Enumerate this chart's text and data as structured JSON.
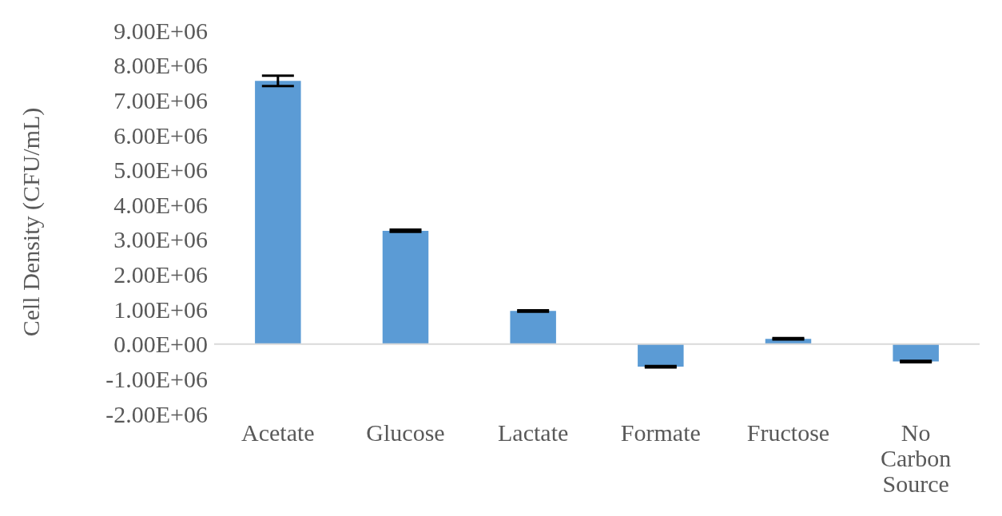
{
  "chart_data": {
    "type": "bar",
    "ylabel": "Cell Density (CFU/mL)",
    "categories": [
      "Acetate",
      "Glucose",
      "Lactate",
      "Formate",
      "Fructose",
      "No Carbon Source"
    ],
    "values": [
      7550000,
      3250000,
      950000,
      -650000,
      150000,
      -500000
    ],
    "errors": [
      150000,
      30000,
      20000,
      20000,
      20000,
      20000
    ],
    "color": "#5b9bd5",
    "ylim": [
      -2000000,
      9000000
    ],
    "yticks": [
      {
        "value": -2000000,
        "label": "-2.00E+06"
      },
      {
        "value": -1000000,
        "label": "-1.00E+06"
      },
      {
        "value": 0,
        "label": "0.00E+00"
      },
      {
        "value": 1000000,
        "label": "1.00E+06"
      },
      {
        "value": 2000000,
        "label": "2.00E+06"
      },
      {
        "value": 3000000,
        "label": "3.00E+06"
      },
      {
        "value": 4000000,
        "label": "4.00E+06"
      },
      {
        "value": 5000000,
        "label": "5.00E+06"
      },
      {
        "value": 6000000,
        "label": "6.00E+06"
      },
      {
        "value": 7000000,
        "label": "7.00E+06"
      },
      {
        "value": 8000000,
        "label": "8.00E+06"
      },
      {
        "value": 9000000,
        "label": "9.00E+06"
      }
    ],
    "ref_lines": [
      {
        "axis": "y",
        "value": 0,
        "color": "#d9d9d9"
      }
    ],
    "legend": false
  }
}
